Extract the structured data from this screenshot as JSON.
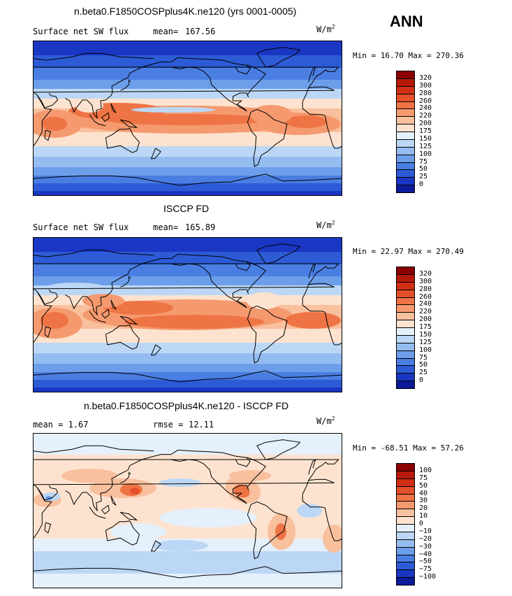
{
  "season": "ANN",
  "units": {
    "base": "W/m",
    "exp": "2"
  },
  "panels": [
    {
      "title": "n.beta0.F1850COSPplus4K.ne120 (yrs 0001-0005)",
      "left_label": "Surface net SW flux",
      "stat_label": "mean=",
      "stat_value": "167.56",
      "minmax": "Min =  16.70 Max = 270.36",
      "colorbar": [
        "320",
        "300",
        "280",
        "260",
        "240",
        "220",
        "200",
        "175",
        "150",
        "125",
        "100",
        "75",
        "50",
        "25",
        "0"
      ]
    },
    {
      "title": "ISCCP FD",
      "left_label": "Surface net SW flux",
      "stat_label": "mean=",
      "stat_value": "165.89",
      "minmax": "Min =  22.97 Max = 270.49",
      "colorbar": [
        "320",
        "300",
        "280",
        "260",
        "240",
        "220",
        "200",
        "175",
        "150",
        "125",
        "100",
        "75",
        "50",
        "25",
        "0"
      ]
    },
    {
      "title": "n.beta0.F1850COSPplus4K.ne120 - ISCCP FD",
      "left_label": "mean =   1.67",
      "stat_label": "rmse =",
      "stat_value": "12.11",
      "minmax": "Min = -68.51 Max =  57.26",
      "colorbar": [
        "100",
        "75",
        "50",
        "40",
        "30",
        "20",
        "10",
        "0",
        "−10",
        "−20",
        "−30",
        "−40",
        "−50",
        "−75",
        "−100"
      ]
    }
  ],
  "palette": [
    "#8b0000",
    "#b61a0a",
    "#d12f14",
    "#e4502a",
    "#ef7445",
    "#f59a6f",
    "#f9c09e",
    "#fde3cf",
    "#e4f0fb",
    "#bcd7f5",
    "#94bcf0",
    "#6c9eea",
    "#4a7ee2",
    "#2d5bd6",
    "#1a37c4",
    "#0d1a99"
  ]
}
